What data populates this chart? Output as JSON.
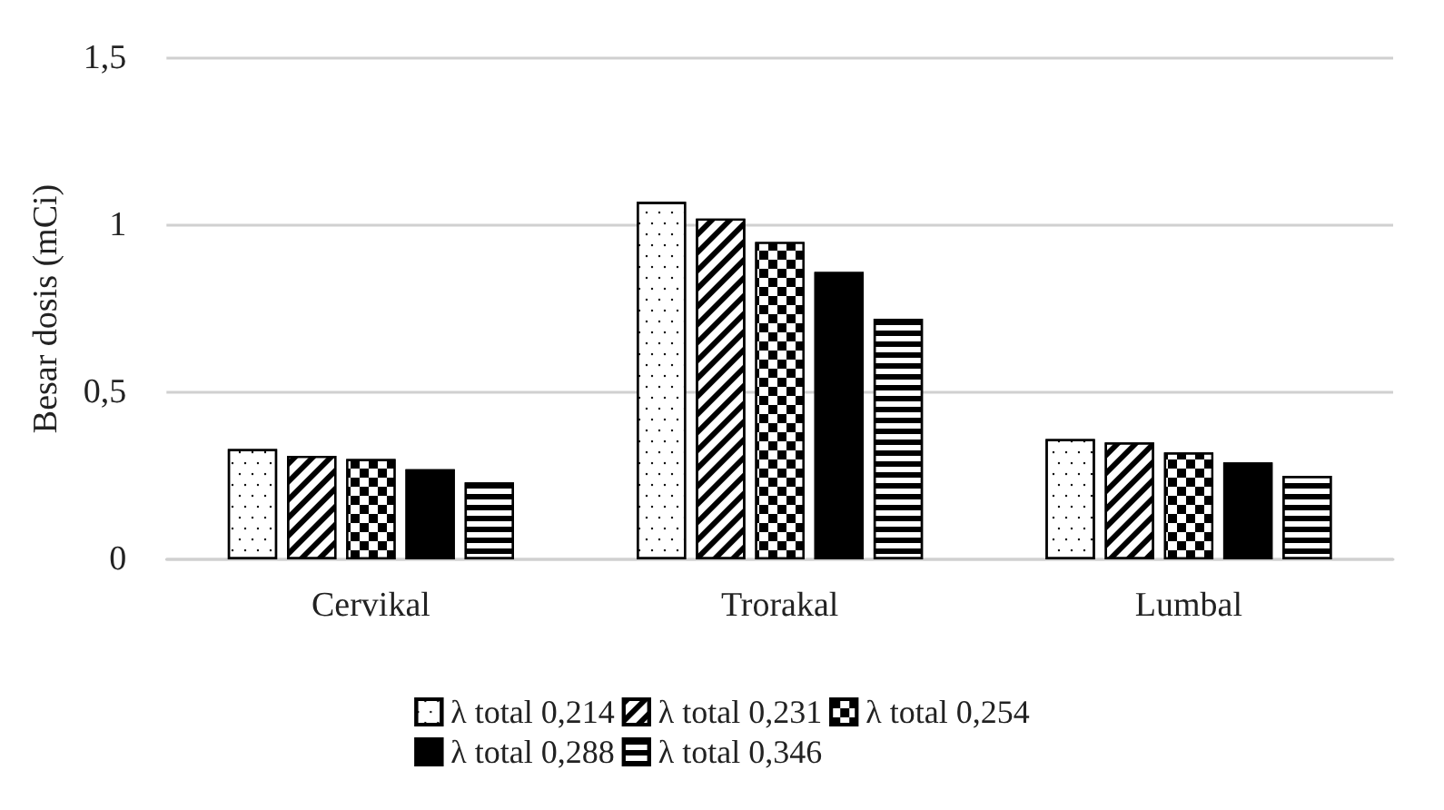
{
  "chart_data": {
    "type": "bar",
    "ylabel": "Besar dosis (mCi)",
    "categories": [
      "Cervikal",
      "Trorakal",
      "Lumbal"
    ],
    "series": [
      {
        "name": "λ total 0,214",
        "color": "#ffffff",
        "values": [
          0.33,
          1.07,
          0.36
        ]
      },
      {
        "name": "λ total 0,231",
        "color": "#ffffff",
        "values": [
          0.31,
          1.02,
          0.35
        ]
      },
      {
        "name": "λ total 0,254",
        "color": "#000000",
        "values": [
          0.3,
          0.95,
          0.32
        ]
      },
      {
        "name": "λ total 0,288",
        "color": "#000000",
        "values": [
          0.27,
          0.86,
          0.29
        ]
      },
      {
        "name": "λ total 0,346",
        "color": "#ffffff",
        "values": [
          0.23,
          0.72,
          0.25
        ]
      }
    ],
    "ylim": [
      0,
      1.5
    ],
    "yticks": [
      0,
      {
        "value": 0.5,
        "label": "0,5"
      },
      1,
      {
        "value": 1.5,
        "label": "1,5"
      }
    ],
    "grid": "y",
    "legend": "bottom"
  }
}
